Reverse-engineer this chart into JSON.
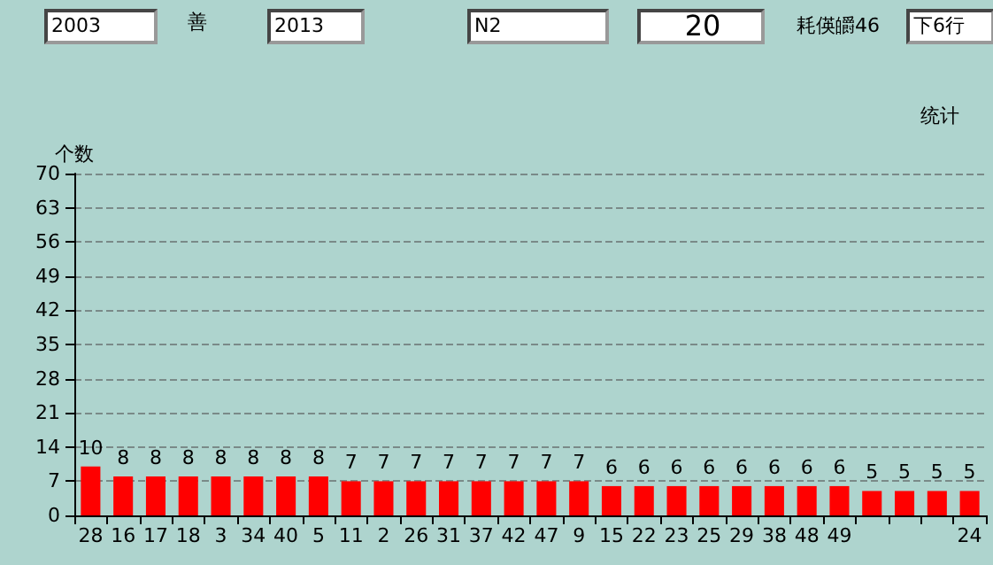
{
  "chart_data": {
    "type": "bar",
    "title": "统计",
    "ylabel": "个数",
    "annotations": [
      "2003",
      "善",
      "2013",
      "N2",
      "20",
      "耗偀皭46",
      "下6行"
    ],
    "categories": [
      "28",
      "16",
      "17",
      "18",
      "3",
      "34",
      "40",
      "5",
      "11",
      "2",
      "26",
      "31",
      "37",
      "42",
      "47",
      "9",
      "15",
      "22",
      "23",
      "25",
      "29",
      "38",
      "48",
      "49",
      null,
      null,
      null,
      "24"
    ],
    "values": [
      10,
      8,
      8,
      8,
      8,
      8,
      8,
      8,
      7,
      7,
      7,
      7,
      7,
      7,
      7,
      7,
      6,
      6,
      6,
      6,
      6,
      6,
      6,
      6,
      5,
      5,
      5,
      5
    ],
    "color": "#ff0000",
    "ylim": [
      0,
      70
    ],
    "yticks": [
      0,
      7,
      14,
      21,
      28,
      35,
      42,
      49,
      56,
      63,
      70
    ],
    "grid": "y",
    "data_labels": true
  }
}
